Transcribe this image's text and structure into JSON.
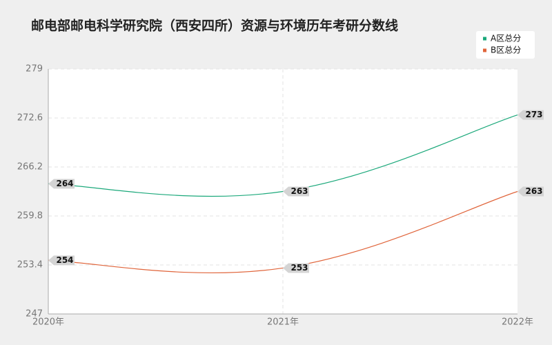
{
  "chart_data": {
    "type": "line",
    "title": "邮电部邮电科学研究院（西安四所）资源与环境历年考研分数线",
    "categories": [
      "2020年",
      "2021年",
      "2022年"
    ],
    "series": [
      {
        "name": "A区总分",
        "color": "#1aa87a",
        "values": [
          264,
          263,
          273
        ]
      },
      {
        "name": "B区总分",
        "color": "#e0643a",
        "values": [
          254,
          253,
          263
        ]
      }
    ],
    "ylim": [
      247,
      279
    ],
    "yticks": [
      247,
      253.4,
      259.8,
      266.2,
      272.6,
      279
    ],
    "grid": true,
    "legend": "top-right"
  }
}
